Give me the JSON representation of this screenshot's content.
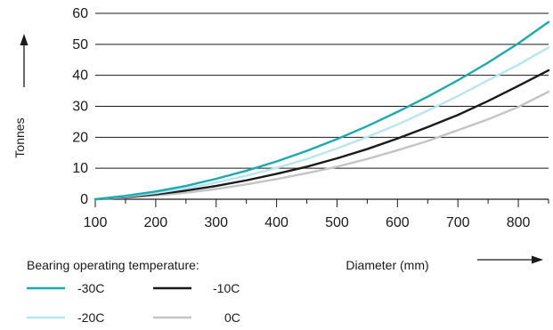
{
  "chart_data": {
    "type": "line",
    "xlabel": "Diameter (mm)",
    "ylabel": "Tonnes",
    "xlim": [
      100,
      850
    ],
    "ylim": [
      0,
      60
    ],
    "x_ticks": [
      100,
      200,
      300,
      400,
      500,
      600,
      700,
      800
    ],
    "y_ticks": [
      0,
      10,
      20,
      30,
      40,
      50,
      60
    ],
    "grid": "horizontal",
    "legend_title": "Bearing operating temperature:",
    "legend_position": "bottom-left",
    "x": [
      100,
      150,
      200,
      250,
      300,
      350,
      400,
      450,
      500,
      550,
      600,
      650,
      700,
      750,
      800,
      850
    ],
    "series": [
      {
        "name": "-30C",
        "color": "#1ba9b4",
        "values": [
          0,
          1.1,
          2.5,
          4.3,
          6.6,
          9.2,
          12.2,
          15.6,
          19.4,
          23.6,
          28.2,
          33.1,
          38.4,
          44.1,
          50.3,
          57.2
        ]
      },
      {
        "name": "-20C",
        "color": "#b8e6ee",
        "values": [
          0,
          0.9,
          2.0,
          3.5,
          5.4,
          7.6,
          10.1,
          13.0,
          16.4,
          20.1,
          24.1,
          28.6,
          33.3,
          38.4,
          43.4,
          49.0
        ]
      },
      {
        "name": "-10C",
        "color": "#1a1a1a",
        "values": [
          0,
          0.7,
          1.6,
          2.8,
          4.3,
          6.1,
          8.2,
          10.5,
          13.2,
          16.2,
          19.6,
          23.3,
          27.2,
          31.7,
          36.6,
          41.6
        ]
      },
      {
        "name": "0C",
        "color": "#c4c4c4",
        "values": [
          0,
          0.5,
          1.2,
          2.1,
          3.3,
          4.8,
          6.5,
          8.4,
          10.5,
          13.0,
          15.8,
          18.8,
          22.3,
          25.8,
          29.8,
          34.7
        ]
      }
    ]
  }
}
